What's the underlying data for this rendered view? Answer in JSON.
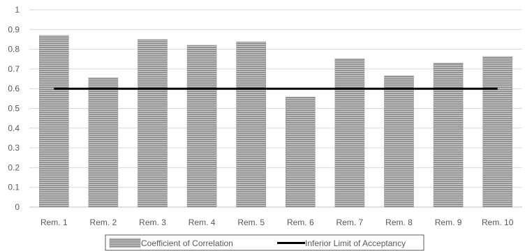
{
  "chart_data": {
    "type": "bar",
    "categories": [
      "Rem. 1",
      "Rem. 2",
      "Rem. 3",
      "Rem. 4",
      "Rem. 5",
      "Rem. 6",
      "Rem. 7",
      "Rem. 8",
      "Rem. 9",
      "Rem. 10"
    ],
    "series": [
      {
        "name": "Coefficient of Correlation",
        "type": "bar",
        "values": [
          0.87,
          0.655,
          0.85,
          0.82,
          0.838,
          0.558,
          0.752,
          0.665,
          0.73,
          0.763
        ]
      },
      {
        "name": "Inferior Limit of Acceptancy",
        "type": "line",
        "values": [
          0.6,
          0.6,
          0.6,
          0.6,
          0.6,
          0.6,
          0.6,
          0.6,
          0.6,
          0.6
        ]
      }
    ],
    "ylim": [
      0,
      1
    ],
    "yticks": [
      "0",
      "0.1",
      "0.2",
      "0.3",
      "0.4",
      "0.5",
      "0.6",
      "0.7",
      "0.8",
      "0.9",
      "1"
    ],
    "grid": true,
    "legend": "bottom",
    "colors": {
      "bar_fill": "#8c8c8c",
      "bar_stripe": "#c8c8c8",
      "line": "#000000",
      "grid": "#d9d9d9",
      "text": "#595959"
    }
  }
}
